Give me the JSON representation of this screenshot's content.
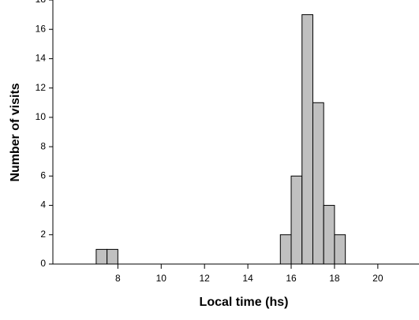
{
  "chart_data": {
    "type": "histogram",
    "xlabel": "Local time (hs)",
    "ylabel": "Number of visits",
    "bins": [
      7,
      7.5,
      8,
      8.5,
      9,
      9.5,
      10,
      10.5,
      11,
      11.5,
      12,
      12.5,
      13,
      13.5,
      14,
      14.5,
      15,
      15.5,
      16,
      16.5,
      17,
      17.5,
      18,
      18.5
    ],
    "values": [
      1,
      1,
      0,
      0,
      0,
      0,
      0,
      0,
      0,
      0,
      0,
      0,
      0,
      0,
      0,
      0,
      0,
      2,
      6,
      17,
      11,
      4,
      2
    ],
    "color": "#c0c0c0",
    "xlim": [
      5,
      21.9
    ],
    "xticks": [
      8,
      10,
      12,
      14,
      16,
      18,
      20
    ],
    "ylim": [
      0,
      18
    ],
    "yticks": [
      0,
      2,
      4,
      6,
      8,
      10,
      12,
      14,
      16,
      18
    ]
  }
}
